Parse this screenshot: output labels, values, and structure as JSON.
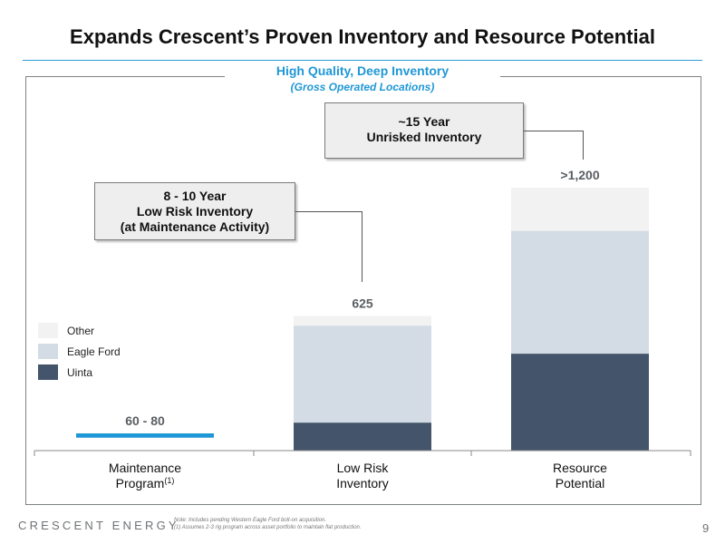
{
  "header": {
    "title": "Expands Crescent’s Proven Inventory and Resource Potential"
  },
  "panel": {
    "title": "High Quality, Deep Inventory",
    "subtitle": "(Gross Operated Locations)"
  },
  "callouts": {
    "low_risk": {
      "lines": [
        "8 - 10 Year",
        "Low Risk Inventory",
        "(at Maintenance Activity)"
      ]
    },
    "unrisked": {
      "lines": [
        "~15 Year",
        "Unrisked Inventory"
      ]
    }
  },
  "chart_data": {
    "type": "bar",
    "stacked": true,
    "categories": [
      "Maintenance Program(1)",
      "Low Risk Inventory",
      "Resource Potential"
    ],
    "category_lines": [
      [
        "Maintenance",
        "Program"
      ],
      [
        "Low Risk",
        "Inventory"
      ],
      [
        "Resource",
        "Potential"
      ]
    ],
    "category_superscripts": [
      "(1)",
      "",
      ""
    ],
    "series": [
      {
        "name": "Uinta",
        "values": [
          null,
          130,
          450
        ],
        "color": "#44546a"
      },
      {
        "name": "Eagle Ford",
        "values": [
          null,
          450,
          570
        ],
        "color": "#d3dbe5"
      },
      {
        "name": "Other",
        "values": [
          null,
          45,
          200
        ],
        "color": "#f2f2f2"
      }
    ],
    "single_bar": {
      "category": "Maintenance Program(1)",
      "value_range": [
        60,
        80
      ],
      "color": "#1f97d6"
    },
    "data_labels": [
      "60 - 80",
      "625",
      ">1,200"
    ],
    "ylim": [
      0,
      1250
    ],
    "legend": {
      "position": "left",
      "order": [
        "Other",
        "Eagle Ford",
        "Uinta"
      ]
    },
    "grid": false
  },
  "footer": {
    "brand": "CRESCENT ENERGY",
    "notes": [
      "Note: Includes pending Western Eagle Ford bolt-on acquisition.",
      "(1)       Assumes 2-3 rig program across asset portfolio to maintain flat production."
    ],
    "page": "9"
  }
}
